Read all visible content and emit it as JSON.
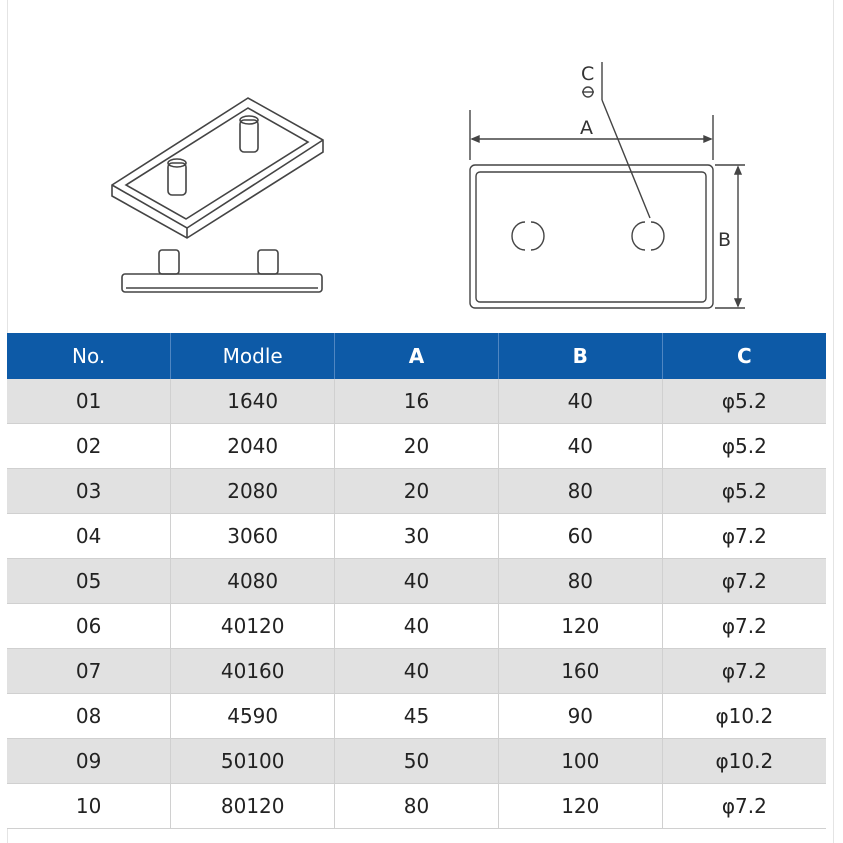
{
  "diagram": {
    "label_a": "A",
    "label_b": "B",
    "label_c": "C"
  },
  "table": {
    "headers": [
      "No.",
      "Modle",
      "A",
      "B",
      "C"
    ],
    "rows": [
      [
        "01",
        "1640",
        "16",
        "40",
        "φ5.2"
      ],
      [
        "02",
        "2040",
        "20",
        "40",
        "φ5.2"
      ],
      [
        "03",
        "2080",
        "20",
        "80",
        "φ5.2"
      ],
      [
        "04",
        "3060",
        "30",
        "60",
        "φ7.2"
      ],
      [
        "05",
        "4080",
        "40",
        "80",
        "φ7.2"
      ],
      [
        "06",
        "40120",
        "40",
        "120",
        "φ7.2"
      ],
      [
        "07",
        "40160",
        "40",
        "160",
        "φ7.2"
      ],
      [
        "08",
        "4590",
        "45",
        "90",
        "φ10.2"
      ],
      [
        "09",
        "50100",
        "50",
        "100",
        "φ10.2"
      ],
      [
        "10",
        "80120",
        "80",
        "120",
        "φ7.2"
      ]
    ]
  },
  "colors": {
    "header_bg": "#0d5aa7",
    "row_alt_bg": "#e1e1e1"
  }
}
